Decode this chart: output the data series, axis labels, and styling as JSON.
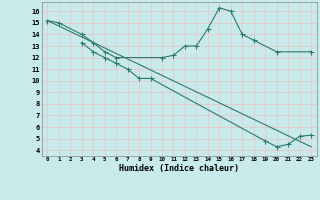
{
  "xlabel": "Humidex (Indice chaleur)",
  "bg_color": "#c8eaea",
  "grid_color": "#e8c8c8",
  "line_color": "#2d7a6e",
  "xlim": [
    -0.5,
    23.5
  ],
  "ylim": [
    3.5,
    16.8
  ],
  "xticks": [
    0,
    1,
    2,
    3,
    4,
    5,
    6,
    7,
    8,
    9,
    10,
    11,
    12,
    13,
    14,
    15,
    16,
    17,
    18,
    19,
    20,
    21,
    22,
    23
  ],
  "yticks": [
    4,
    5,
    6,
    7,
    8,
    9,
    10,
    11,
    12,
    13,
    14,
    15,
    16
  ],
  "line1_x": [
    0,
    1,
    3,
    4,
    5,
    6,
    10,
    11,
    12,
    13,
    14,
    15,
    16,
    17,
    18,
    20,
    23
  ],
  "line1_y": [
    15.2,
    15.0,
    14.0,
    13.3,
    12.5,
    12.0,
    12.0,
    12.2,
    13.0,
    13.0,
    14.5,
    16.3,
    16.0,
    14.0,
    13.5,
    12.5,
    12.5
  ],
  "line2_x": [
    0,
    23
  ],
  "line2_y": [
    15.2,
    4.3
  ],
  "line3_x": [
    3,
    4,
    5,
    6,
    7,
    8,
    9,
    19,
    20,
    21,
    22,
    23
  ],
  "line3_y": [
    13.3,
    12.5,
    12.0,
    11.5,
    11.0,
    10.2,
    10.2,
    4.8,
    4.3,
    4.5,
    5.2,
    5.3
  ]
}
